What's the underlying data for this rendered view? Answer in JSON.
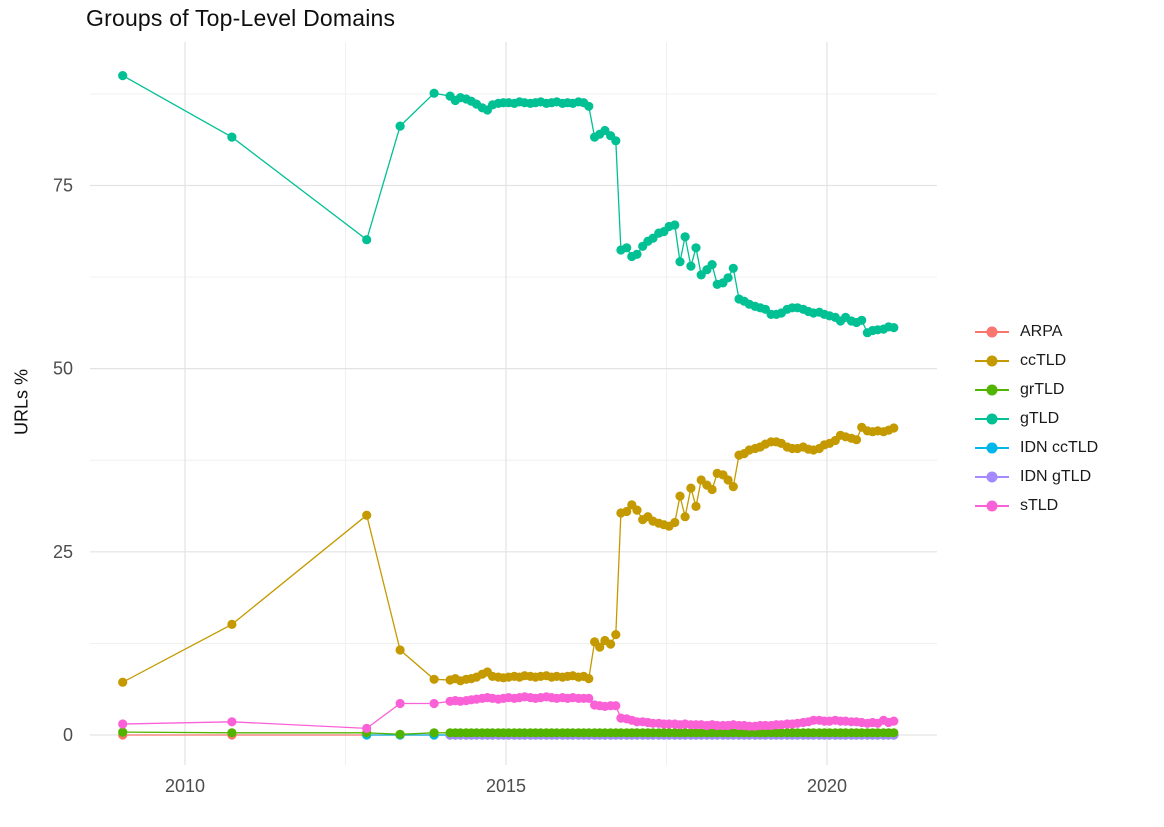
{
  "chart_data": {
    "type": "line",
    "title": "Groups of Top-Level Domains",
    "ylabel": "URLs %",
    "xlabel": "",
    "grid": "on",
    "legend_position": "right",
    "x_axis": {
      "ticks": [
        2010,
        2015,
        2020
      ],
      "minor_ticks": [
        2012.5,
        2017.5
      ],
      "range": [
        2008.65,
        2021.7
      ]
    },
    "y_axis": {
      "ticks": [
        0,
        25,
        50,
        75
      ],
      "minor_ticks": [
        12.5,
        37.5,
        62.5,
        87.5
      ],
      "range": [
        -4.5,
        94.5
      ]
    },
    "x_early": [
      2009.03,
      2010.73,
      2012.83,
      2013.35
    ],
    "x_dense": [
      2013.88,
      2014.13,
      2014.21,
      2014.29,
      2014.38,
      2014.46,
      2014.54,
      2014.63,
      2014.71,
      2014.79,
      2014.88,
      2014.96,
      2015.04,
      2015.13,
      2015.21,
      2015.29,
      2015.38,
      2015.46,
      2015.54,
      2015.63,
      2015.71,
      2015.79,
      2015.88,
      2015.96,
      2016.04,
      2016.13,
      2016.21,
      2016.29,
      2016.38,
      2016.46,
      2016.54,
      2016.63,
      2016.71,
      2016.79,
      2016.88,
      2016.96,
      2017.04,
      2017.13,
      2017.21,
      2017.29,
      2017.38,
      2017.46,
      2017.54,
      2017.63,
      2017.71,
      2017.79,
      2017.88,
      2017.96,
      2018.04,
      2018.13,
      2018.21,
      2018.29,
      2018.38,
      2018.46,
      2018.54,
      2018.63,
      2018.71,
      2018.79,
      2018.88,
      2018.96,
      2019.04,
      2019.13,
      2019.21,
      2019.29,
      2019.38,
      2019.46,
      2019.54,
      2019.63,
      2019.71,
      2019.79,
      2019.88,
      2019.96,
      2020.04,
      2020.13,
      2020.21,
      2020.29,
      2020.38,
      2020.46,
      2020.54,
      2020.63,
      2020.71,
      2020.79,
      2020.88,
      2020.96,
      2021.04
    ],
    "draw_order": [
      "ARPA",
      "IDN ccTLD",
      "IDN gTLD",
      "grTLD",
      "gTLD",
      "ccTLD",
      "sTLD"
    ],
    "series": [
      {
        "name": "ARPA",
        "color": "#F8766D",
        "early": [
          0.0,
          0.0,
          0.0,
          0.0
        ],
        "dense_fill": 0.0
      },
      {
        "name": "ccTLD",
        "color": "#C49A00",
        "early": [
          7.2,
          15.1,
          30.0,
          11.6
        ],
        "dense": [
          7.6,
          7.5,
          7.7,
          7.4,
          7.6,
          7.7,
          7.9,
          8.3,
          8.6,
          8.0,
          7.9,
          7.8,
          7.9,
          8.0,
          7.9,
          8.1,
          8.0,
          7.9,
          8.0,
          8.1,
          7.9,
          8.0,
          7.9,
          8.0,
          8.1,
          7.9,
          8.0,
          7.7,
          12.7,
          12.0,
          12.9,
          12.4,
          13.7,
          30.3,
          30.5,
          31.4,
          30.7,
          29.4,
          29.8,
          29.2,
          28.9,
          28.7,
          28.5,
          29.0,
          32.6,
          29.8,
          33.7,
          31.2,
          34.8,
          34.1,
          33.5,
          35.7,
          35.5,
          34.8,
          33.9,
          38.2,
          38.4,
          38.9,
          39.1,
          39.3,
          39.7,
          40.0,
          40.0,
          39.8,
          39.3,
          39.1,
          39.1,
          39.3,
          39.0,
          38.9,
          39.1,
          39.6,
          39.8,
          40.2,
          40.9,
          40.7,
          40.5,
          40.3,
          42.0,
          41.5,
          41.4,
          41.5,
          41.4,
          41.6,
          41.9
        ]
      },
      {
        "name": "grTLD",
        "color": "#53B400",
        "early": [
          0.4,
          0.3,
          0.3,
          0.1
        ],
        "dense_fill": 0.3
      },
      {
        "name": "gTLD",
        "color": "#00C094",
        "early": [
          90.0,
          81.6,
          67.6,
          83.1
        ],
        "dense": [
          87.6,
          87.2,
          86.6,
          87.0,
          86.8,
          86.5,
          86.1,
          85.6,
          85.3,
          86.0,
          86.2,
          86.3,
          86.3,
          86.2,
          86.4,
          86.3,
          86.2,
          86.3,
          86.4,
          86.2,
          86.3,
          86.4,
          86.2,
          86.3,
          86.2,
          86.4,
          86.3,
          85.8,
          81.6,
          82.0,
          82.5,
          81.8,
          81.1,
          66.2,
          66.5,
          65.3,
          65.6,
          66.7,
          67.4,
          67.8,
          68.5,
          68.7,
          69.4,
          69.6,
          64.6,
          68.0,
          64.0,
          66.5,
          62.8,
          63.5,
          64.2,
          61.5,
          61.7,
          62.4,
          63.7,
          59.5,
          59.2,
          58.8,
          58.5,
          58.3,
          58.1,
          57.4,
          57.4,
          57.6,
          58.1,
          58.3,
          58.3,
          58.1,
          57.8,
          57.6,
          57.7,
          57.4,
          57.2,
          57.0,
          56.5,
          57.0,
          56.5,
          56.3,
          56.6,
          54.9,
          55.2,
          55.3,
          55.4,
          55.7,
          55.6
        ]
      },
      {
        "name": "IDN ccTLD",
        "color": "#00B6EB",
        "early": [
          null,
          null,
          0.0,
          0.0
        ],
        "dense_fill": 0.0
      },
      {
        "name": "IDN gTLD",
        "color": "#A58AFF",
        "early": [
          null,
          null,
          null,
          null
        ],
        "dense_fill": 0.0,
        "dense_from": 2014.13
      },
      {
        "name": "sTLD",
        "color": "#FB61D7",
        "early": [
          1.5,
          1.8,
          0.9,
          4.3
        ],
        "dense": [
          4.3,
          4.6,
          4.7,
          4.6,
          4.7,
          4.8,
          4.9,
          5.0,
          5.1,
          5.0,
          4.9,
          5.0,
          5.1,
          5.0,
          5.1,
          5.2,
          5.1,
          5.0,
          5.1,
          5.2,
          5.1,
          5.0,
          5.1,
          5.0,
          5.1,
          5.0,
          5.0,
          5.0,
          4.1,
          4.0,
          3.9,
          4.0,
          4.0,
          2.3,
          2.2,
          2.0,
          1.8,
          1.8,
          1.7,
          1.6,
          1.6,
          1.5,
          1.5,
          1.5,
          1.4,
          1.5,
          1.4,
          1.4,
          1.4,
          1.3,
          1.4,
          1.3,
          1.3,
          1.3,
          1.4,
          1.3,
          1.3,
          1.2,
          1.2,
          1.3,
          1.3,
          1.3,
          1.4,
          1.4,
          1.5,
          1.5,
          1.6,
          1.7,
          1.8,
          2.0,
          2.0,
          1.9,
          1.9,
          2.0,
          1.9,
          1.9,
          1.8,
          1.8,
          1.7,
          1.6,
          1.7,
          1.6,
          2.0,
          1.7,
          1.9
        ]
      }
    ]
  }
}
